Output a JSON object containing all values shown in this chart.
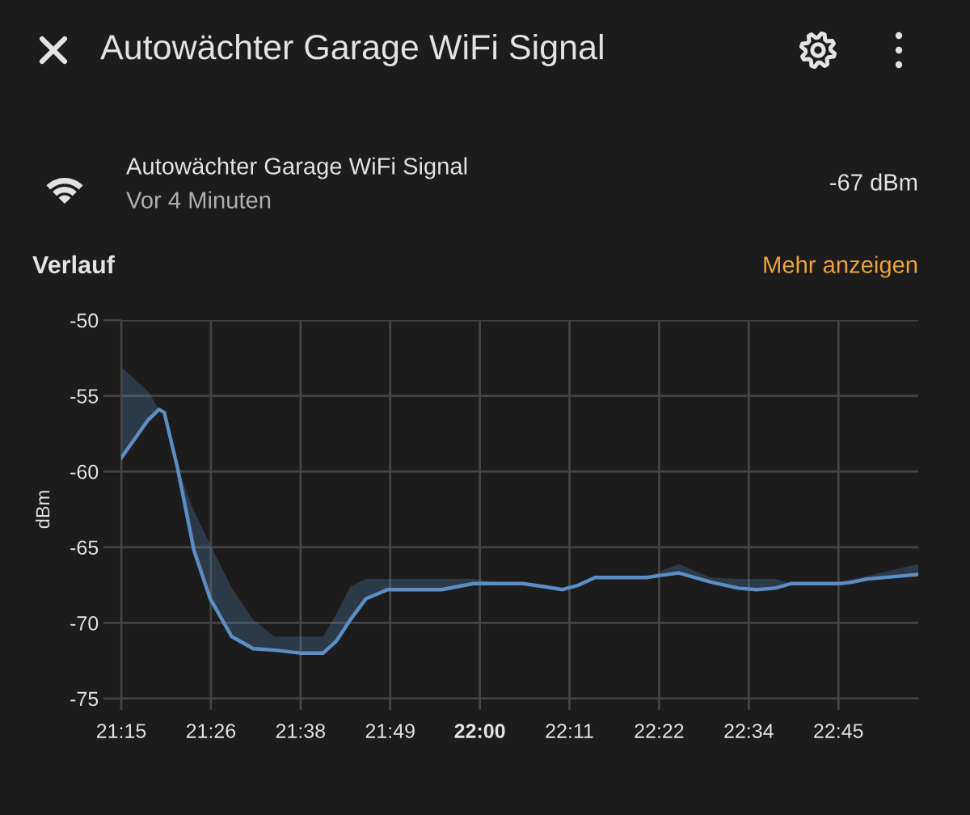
{
  "chart_data": {
    "type": "line",
    "title": "Autowächter Garage WiFi Signal",
    "subtitle": "Verlauf",
    "annotations": [
      "Autowächter Garage WiFi Signal",
      "Vor 4 Minuten",
      "-67 dBm",
      "Mehr anzeigen"
    ],
    "ylabel": "dBm",
    "x": [
      21.25,
      21.306,
      21.329,
      21.34,
      21.368,
      21.402,
      21.436,
      21.481,
      21.526,
      21.571,
      21.627,
      21.672,
      21.7,
      21.729,
      21.762,
      21.807,
      21.92,
      21.987,
      22.05,
      22.089,
      22.134,
      22.173,
      22.207,
      22.241,
      22.348,
      22.37,
      22.416,
      22.483,
      22.54,
      22.579,
      22.618,
      22.652,
      22.753,
      22.78,
      22.81,
      22.917
    ],
    "series": [
      {
        "color": "#5b8ec5",
        "values": [
          -59.1,
          -56.6,
          -55.9,
          -56.1,
          -59.8,
          -65.2,
          -68.4,
          -70.9,
          -71.7,
          -71.8,
          -72.0,
          -72.0,
          -71.2,
          -69.8,
          -68.4,
          -67.8,
          -67.8,
          -67.4,
          -67.4,
          -67.4,
          -67.6,
          -67.8,
          -67.5,
          -67.0,
          -67.0,
          -66.9,
          -66.7,
          -67.3,
          -67.7,
          -67.8,
          -67.7,
          -67.4,
          -67.4,
          -67.3,
          -67.1,
          -66.8
        ],
        "lower": [
          -59.1,
          -56.6,
          -55.9,
          -56.1,
          -59.8,
          -65.2,
          -68.4,
          -70.9,
          -71.7,
          -71.8,
          -72.0,
          -72.0,
          -71.2,
          -69.8,
          -68.4,
          -67.8,
          -67.8,
          -67.4,
          -67.4,
          -67.4,
          -67.6,
          -67.8,
          -67.5,
          -67.0,
          -67.0,
          -66.9,
          -66.7,
          -67.3,
          -67.7,
          -67.8,
          -67.7,
          -67.4,
          -67.4,
          -67.3,
          -67.1,
          -66.8
        ],
        "upper": [
          -53.1,
          -54.7,
          -55.9,
          -56.1,
          -59.8,
          -62.6,
          -64.8,
          -67.7,
          -69.8,
          -70.9,
          -70.9,
          -70.9,
          -69.4,
          -67.6,
          -67.1,
          -67.1,
          -67.1,
          -67.1,
          -67.4,
          -67.4,
          -67.6,
          -67.8,
          -67.5,
          -67.0,
          -67.0,
          -66.7,
          -66.1,
          -67.0,
          -67.1,
          -67.1,
          -67.1,
          -67.4,
          -67.4,
          -67.1,
          -66.9,
          -66.1
        ]
      }
    ],
    "xlim": [
      21.25,
      22.917
    ],
    "xticks": [
      {
        "value": 21.25,
        "label": "21:15"
      },
      {
        "value": 21.4375,
        "label": "21:26"
      },
      {
        "value": 21.625,
        "label": "21:38"
      },
      {
        "value": 21.8125,
        "label": "21:49"
      },
      {
        "value": 22.0,
        "label": "22:00"
      },
      {
        "value": 22.1875,
        "label": "22:11"
      },
      {
        "value": 22.375,
        "label": "22:22"
      },
      {
        "value": 22.5625,
        "label": "22:34"
      },
      {
        "value": 22.75,
        "label": "22:45"
      }
    ],
    "ylim": [
      -75,
      -50
    ],
    "yticks": [
      -50,
      -55,
      -60,
      -65,
      -70,
      -75
    ],
    "grid": true
  }
}
